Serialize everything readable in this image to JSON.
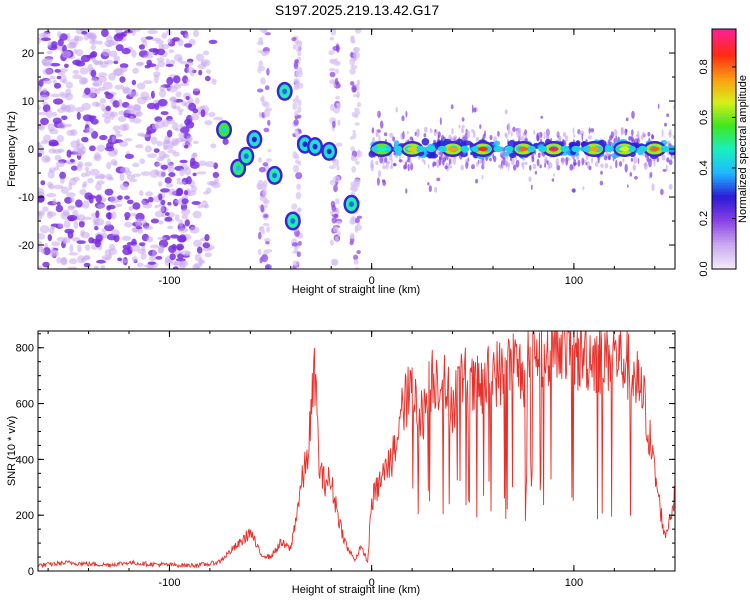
{
  "title": "S197.2025.219.13.42.G17",
  "colors": {
    "frame": "#000000",
    "snr_line": "#e8302a",
    "speckle": "#7a2fe0",
    "colormap": [
      "#f3e8fb",
      "#c9a8f0",
      "#8a3fe6",
      "#2a1bd6",
      "#1fb8ff",
      "#19f0c0",
      "#3fe61e",
      "#d8ef1a",
      "#ff9a12",
      "#ff2a12",
      "#ff1f8f"
    ]
  },
  "chart_data": [
    {
      "type": "heatmap",
      "title": "",
      "xlabel": "Height of straight line (km)",
      "ylabel": "Frequency (Hz)",
      "xlim": [
        -165,
        150
      ],
      "ylim": [
        -25,
        25
      ],
      "x_ticks": [
        -100,
        0,
        100
      ],
      "x_tick_labels": [
        "-100",
        "0",
        "100"
      ],
      "y_ticks": [
        -20,
        -10,
        0,
        10,
        20
      ],
      "y_tick_labels": [
        "-20",
        "-10",
        "0",
        "10",
        "20"
      ],
      "colorbar": {
        "label": "Normalized spectral amplitude",
        "range": [
          0,
          0.95
        ],
        "ticks": [
          0.0,
          0.2,
          0.4,
          0.6,
          0.8
        ],
        "tick_labels": [
          "0.0",
          "0.2",
          "0.4",
          "0.6",
          "0.8"
        ]
      },
      "features": [
        {
          "x": -73,
          "y": 4,
          "amplitude": 0.45
        },
        {
          "x": -66,
          "y": -4,
          "amplitude": 0.4
        },
        {
          "x": -62,
          "y": -1.5,
          "amplitude": 0.35
        },
        {
          "x": -58,
          "y": 2,
          "amplitude": 0.3
        },
        {
          "x": -48,
          "y": -5.5,
          "amplitude": 0.35
        },
        {
          "x": -43,
          "y": 12,
          "amplitude": 0.35
        },
        {
          "x": -39,
          "y": -15,
          "amplitude": 0.35
        },
        {
          "x": -33,
          "y": 1,
          "amplitude": 0.3
        },
        {
          "x": -28,
          "y": 0.5,
          "amplitude": 0.3
        },
        {
          "x": -21,
          "y": -0.5,
          "amplitude": 0.3
        },
        {
          "x": -10,
          "y": -11.5,
          "amplitude": 0.35
        },
        {
          "x": 5,
          "y": 0,
          "amplitude": 0.5
        },
        {
          "x": 20,
          "y": 0,
          "amplitude": 0.75
        },
        {
          "x": 40,
          "y": 0,
          "amplitude": 0.8
        },
        {
          "x": 55,
          "y": 0,
          "amplitude": 0.9
        },
        {
          "x": 75,
          "y": 0,
          "amplitude": 0.85
        },
        {
          "x": 90,
          "y": 0,
          "amplitude": 0.95
        },
        {
          "x": 110,
          "y": 0,
          "amplitude": 0.8
        },
        {
          "x": 125,
          "y": 0,
          "amplitude": 0.7
        },
        {
          "x": 140,
          "y": 0,
          "amplitude": 0.85
        }
      ]
    },
    {
      "type": "line",
      "title": "",
      "xlabel": "Height of straight line (km)",
      "ylabel": "SNR (10 * v/v)",
      "xlim": [
        -165,
        150
      ],
      "ylim": [
        0,
        860
      ],
      "x_ticks": [
        -100,
        0,
        100
      ],
      "x_tick_labels": [
        "-100",
        "0",
        "100"
      ],
      "y_ticks": [
        0,
        200,
        400,
        600,
        800
      ],
      "y_tick_labels": [
        "0",
        "200",
        "400",
        "600",
        "800"
      ],
      "series": [
        {
          "x": [
            -165,
            -150,
            -140,
            -130,
            -120,
            -110,
            -100,
            -90,
            -80,
            -75,
            -70,
            -65,
            -60,
            -55,
            -50,
            -45,
            -40,
            -35,
            -32,
            -30,
            -28,
            -26,
            -24,
            -22,
            -20,
            -18,
            -15,
            -12,
            -10,
            -8,
            -6,
            -4,
            -2,
            0,
            3,
            6,
            10,
            13,
            16,
            20,
            25,
            30,
            35,
            40,
            45,
            50,
            55,
            60,
            65,
            70,
            75,
            80,
            85,
            90,
            95,
            100,
            105,
            110,
            115,
            120,
            125,
            130,
            135,
            140,
            145,
            150
          ],
          "y": [
            20,
            30,
            25,
            22,
            30,
            25,
            22,
            20,
            25,
            35,
            70,
            100,
            140,
            60,
            50,
            100,
            80,
            300,
            400,
            550,
            720,
            380,
            320,
            330,
            310,
            250,
            150,
            80,
            60,
            40,
            80,
            70,
            30,
            250,
            300,
            350,
            400,
            500,
            600,
            650,
            550,
            700,
            680,
            600,
            700,
            650,
            660,
            720,
            700,
            750,
            700,
            800,
            780,
            840,
            830,
            760,
            780,
            770,
            760,
            780,
            750,
            700,
            600,
            350,
            120,
            270
          ]
        }
      ]
    }
  ]
}
